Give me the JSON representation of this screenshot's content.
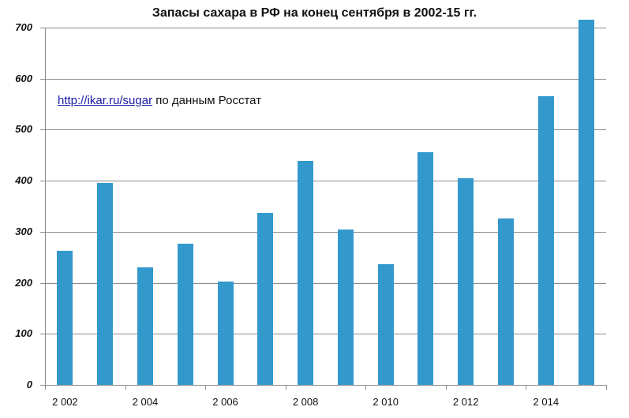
{
  "chart_data": {
    "type": "bar",
    "title": "Запасы сахара в РФ на конец сентября в 2002-15 гг.",
    "xlabel": "",
    "ylabel": "",
    "categories": [
      "2002",
      "2003",
      "2004",
      "2005",
      "2006",
      "2007",
      "2008",
      "2009",
      "2010",
      "2011",
      "2012",
      "2013",
      "2014",
      "2015"
    ],
    "values": [
      263,
      396,
      230,
      277,
      202,
      337,
      439,
      304,
      236,
      456,
      405,
      326,
      566,
      715
    ],
    "ylim": [
      0,
      700
    ],
    "yticks": [
      "0",
      "100",
      "200",
      "300",
      "400",
      "500",
      "600",
      "700"
    ],
    "xtick_labels": [
      "2 002",
      "2 004",
      "2 006",
      "2 008",
      "2 010",
      "2 012",
      "2 014"
    ],
    "grid": true,
    "legend": null,
    "bar_color": "#3399cc",
    "annotation": {
      "link": "http://ikar.ru/sugar",
      "text": " по данным Росстат"
    }
  }
}
